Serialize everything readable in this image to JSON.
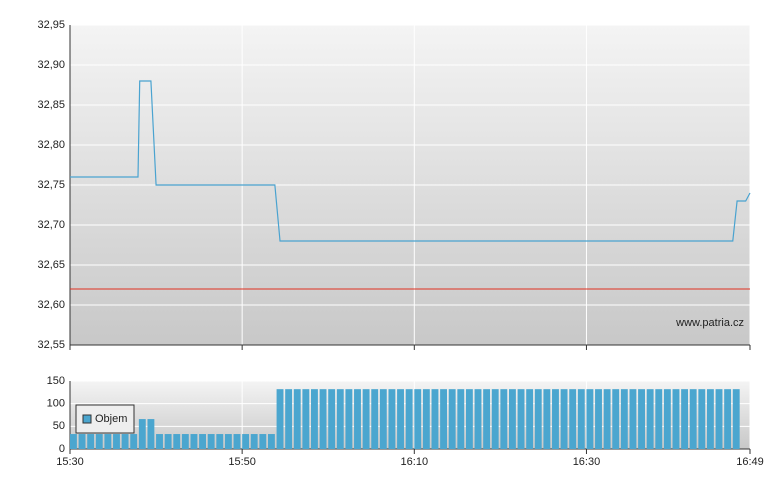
{
  "chart_data": [
    {
      "type": "line",
      "annotation": "www.patria.cz",
      "xlim": [
        930,
        1009
      ],
      "ylim": [
        32.55,
        32.95
      ],
      "yticks": [
        {
          "value": 32.55,
          "label": "32,55"
        },
        {
          "value": 32.6,
          "label": "32,60"
        },
        {
          "value": 32.65,
          "label": "32,65"
        },
        {
          "value": 32.7,
          "label": "32,70"
        },
        {
          "value": 32.75,
          "label": "32,75"
        },
        {
          "value": 32.8,
          "label": "32,80"
        },
        {
          "value": 32.85,
          "label": "32,85"
        },
        {
          "value": 32.9,
          "label": "32,90"
        },
        {
          "value": 32.95,
          "label": "32,95"
        }
      ],
      "grid": true,
      "reference_line": {
        "value": 32.62,
        "color": "#e03020"
      },
      "series": [
        {
          "color": "#4aa3d0",
          "x": [
            930,
            937.9,
            938.1,
            939.4,
            940.0,
            953.8,
            954.4,
            1007.0,
            1007.5,
            1008.5,
            1009
          ],
          "values": [
            32.76,
            32.76,
            32.88,
            32.88,
            32.75,
            32.75,
            32.68,
            32.68,
            32.73,
            32.73,
            32.74
          ]
        }
      ]
    },
    {
      "type": "bar",
      "xlim": [
        930,
        1009
      ],
      "ylim": [
        0,
        150
      ],
      "yticks": [
        0,
        50,
        100,
        150
      ],
      "xticks": [
        {
          "value": 930,
          "label": "15:30"
        },
        {
          "value": 950,
          "label": "15:50"
        },
        {
          "value": 970,
          "label": "16:10"
        },
        {
          "value": 990,
          "label": "16:30"
        },
        {
          "value": 1009,
          "label": "16:49"
        }
      ],
      "grid": true,
      "legend": "lower left",
      "series": [
        {
          "name": "Objem",
          "color": "#4ba6cf",
          "x": [
            930,
            931,
            932,
            933,
            934,
            935,
            936,
            937,
            938,
            939,
            940,
            941,
            942,
            943,
            944,
            945,
            946,
            947,
            948,
            949,
            950,
            951,
            952,
            953,
            954,
            955,
            956,
            957,
            958,
            959,
            960,
            961,
            962,
            963,
            964,
            965,
            966,
            967,
            968,
            969,
            970,
            971,
            972,
            973,
            974,
            975,
            976,
            977,
            978,
            979,
            980,
            981,
            982,
            983,
            984,
            985,
            986,
            987,
            988,
            989,
            990,
            991,
            992,
            993,
            994,
            995,
            996,
            997,
            998,
            999,
            1000,
            1001,
            1002,
            1003,
            1004,
            1005,
            1006,
            1007
          ],
          "values": [
            33,
            33,
            33,
            33,
            33,
            33,
            33,
            33,
            66,
            66,
            33,
            33,
            33,
            33,
            33,
            33,
            33,
            33,
            33,
            33,
            33,
            33,
            33,
            33,
            132,
            132,
            132,
            132,
            132,
            132,
            132,
            132,
            132,
            132,
            132,
            132,
            132,
            132,
            132,
            132,
            132,
            132,
            132,
            132,
            132,
            132,
            132,
            132,
            132,
            132,
            132,
            132,
            132,
            132,
            132,
            132,
            132,
            132,
            132,
            132,
            132,
            132,
            132,
            132,
            132,
            132,
            132,
            132,
            132,
            132,
            132,
            132,
            132,
            132,
            132,
            132,
            132,
            132
          ]
        }
      ]
    }
  ]
}
